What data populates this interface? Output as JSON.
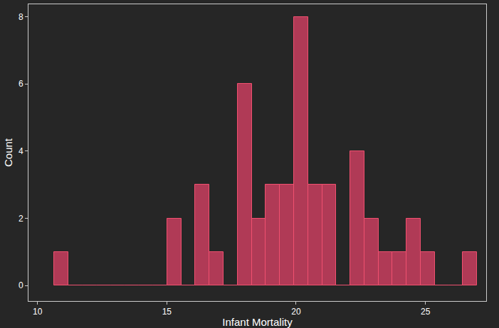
{
  "chart_data": {
    "type": "histogram",
    "x_label": "Infant Mortality",
    "y_label": "Count",
    "bins": [
      10.65,
      11.195,
      11.74,
      12.285,
      12.83,
      13.375,
      13.92,
      14.465,
      15.01,
      15.555,
      16.1,
      16.645,
      17.19,
      17.735,
      18.28,
      18.825,
      19.37,
      19.915,
      20.46,
      21.005,
      21.55,
      22.095,
      22.64,
      23.185,
      23.73,
      24.275,
      24.82,
      25.365,
      25.91,
      26.455,
      27.0
    ],
    "values": [
      1,
      0,
      0,
      0,
      0,
      0,
      0,
      0,
      2,
      0,
      3,
      1,
      0,
      6,
      2,
      3,
      3,
      8,
      3,
      3,
      0,
      4,
      2,
      1,
      1,
      2,
      1,
      0,
      0,
      1
    ],
    "color": "#b03a56",
    "xlim": [
      9.65,
      27.35
    ],
    "xticks": [
      10,
      15,
      20,
      25
    ],
    "ylim": [
      -0.46,
      8.37
    ],
    "yticks": [
      0,
      2,
      4,
      6,
      8
    ],
    "grid": false
  }
}
